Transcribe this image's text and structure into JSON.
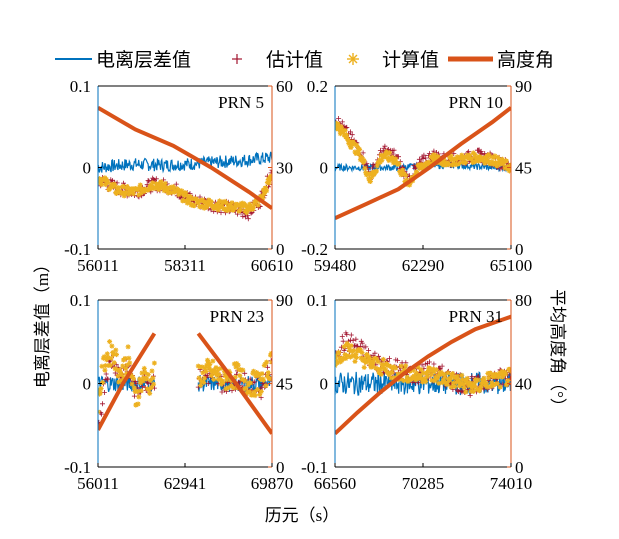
{
  "legend": {
    "position": "top",
    "items": [
      {
        "label": "电离层差值",
        "color": "#0072BD",
        "marker": "line"
      },
      {
        "label": "估计值",
        "color": "#A2142F",
        "marker": "plus"
      },
      {
        "label": "计算值",
        "color": "#EDB120",
        "marker": "star"
      },
      {
        "label": "高度角",
        "color": "#D95319",
        "marker": "thick-line"
      }
    ]
  },
  "left_ylabel": "电离层差值（m）",
  "right_ylabel": "平均高度角（°）",
  "xlabel": "历元（s）",
  "colors": {
    "diff": "#0072BD",
    "est": "#A2142F",
    "calc": "#EDB120",
    "elev": "#D95319",
    "right_axis": "#D95319",
    "left_axis": "#0072BD"
  },
  "chart_data": [
    {
      "type": "line",
      "title": "PRN 5",
      "x_ticks": [
        "56011",
        "58311",
        "60610"
      ],
      "xlim": [
        56011,
        60610
      ],
      "ylim": [
        -0.1,
        0.1
      ],
      "y_ticks": [
        "-0.1",
        "0",
        "0.1"
      ],
      "y2lim": [
        0,
        60
      ],
      "y2_ticks": [
        "0",
        "30",
        "60"
      ],
      "series": [
        {
          "name": "电离层差值",
          "x": [
            56011,
            56900,
            57800,
            58700,
            59600,
            60610
          ],
          "values": [
            0.0,
            0.004,
            0.003,
            0.005,
            0.008,
            0.012
          ],
          "noise": 0.008
        },
        {
          "name": "估计值",
          "x": [
            56011,
            56500,
            57000,
            57500,
            58000,
            58500,
            59000,
            59500,
            60000,
            60300,
            60610
          ],
          "values": [
            -0.015,
            -0.025,
            -0.03,
            -0.02,
            -0.025,
            -0.04,
            -0.045,
            -0.05,
            -0.055,
            -0.04,
            -0.005
          ],
          "noise": 0.008
        },
        {
          "name": "计算值",
          "x": [
            56011,
            56500,
            57000,
            57500,
            58000,
            58500,
            59000,
            59500,
            60000,
            60300,
            60610
          ],
          "values": [
            -0.012,
            -0.028,
            -0.03,
            -0.02,
            -0.028,
            -0.042,
            -0.045,
            -0.048,
            -0.05,
            -0.04,
            -0.01
          ],
          "noise": 0.006
        },
        {
          "name": "高度角",
          "x": [
            56011,
            57000,
            58000,
            59000,
            60000,
            60610
          ],
          "values": [
            52,
            44,
            38,
            30,
            21,
            15
          ]
        }
      ]
    },
    {
      "type": "line",
      "title": "PRN 10",
      "x_ticks": [
        "59480",
        "62290",
        "65100"
      ],
      "xlim": [
        59480,
        65100
      ],
      "ylim": [
        -0.2,
        0.2
      ],
      "y_ticks": [
        "-0.2",
        "0",
        "0.2"
      ],
      "y2lim": [
        0,
        90
      ],
      "y2_ticks": [
        "0",
        "45",
        "90"
      ],
      "series": [
        {
          "name": "电离层差值",
          "x": [
            59480,
            60500,
            61500,
            62500,
            63500,
            64500,
            65100
          ],
          "values": [
            0.0,
            0.0,
            0.0,
            0.005,
            0.005,
            0.0,
            0.0
          ],
          "noise": 0.008
        },
        {
          "name": "估计值",
          "x": [
            59480,
            59700,
            60000,
            60300,
            60600,
            61000,
            61400,
            61800,
            62200,
            62600,
            63000,
            63500,
            64000,
            64500,
            65100
          ],
          "values": [
            0.12,
            0.1,
            0.07,
            0.04,
            -0.02,
            0.04,
            0.03,
            -0.03,
            0.01,
            0.03,
            0.02,
            0.02,
            0.03,
            0.02,
            0.0
          ],
          "noise": 0.015
        },
        {
          "name": "计算值",
          "x": [
            59480,
            59700,
            60000,
            60300,
            60600,
            61000,
            61400,
            61800,
            62200,
            62600,
            63000,
            63500,
            64000,
            64500,
            65100
          ],
          "values": [
            0.11,
            0.09,
            0.06,
            0.03,
            -0.03,
            0.03,
            0.02,
            -0.04,
            0.0,
            0.02,
            0.015,
            0.02,
            0.025,
            0.02,
            0.0
          ],
          "noise": 0.012
        },
        {
          "name": "高度角",
          "x": [
            59480,
            60500,
            61500,
            62500,
            63500,
            64500,
            65100
          ],
          "values": [
            17,
            25,
            33,
            45,
            58,
            70,
            78
          ]
        }
      ]
    },
    {
      "type": "line",
      "title": "PRN 23",
      "x_ticks": [
        "56011",
        "62941",
        "69870"
      ],
      "xlim": [
        56011,
        69870
      ],
      "ylim": [
        -0.1,
        0.1
      ],
      "y_ticks": [
        "-0.1",
        "0",
        "0.1"
      ],
      "y2lim": [
        0,
        90
      ],
      "y2_ticks": [
        "0",
        "45",
        "90"
      ],
      "series": [
        {
          "name": "电离层差值",
          "segments": [
            {
              "x": [
                56011,
                57500,
                59000,
                60500
              ],
              "values": [
                0.0,
                0.0,
                0.0,
                0.0
              ]
            },
            {
              "x": [
                64000,
                66000,
                68000,
                69870
              ],
              "values": [
                0.0,
                0.0,
                0.0,
                0.0
              ]
            }
          ],
          "noise": 0.01
        },
        {
          "name": "估计值",
          "segments": [
            {
              "x": [
                56011,
                56600,
                57200,
                57800,
                58400,
                59000,
                59600,
                60200,
                60500
              ],
              "values": [
                -0.06,
                0.01,
                0.03,
                0.01,
                0.02,
                -0.01,
                0.005,
                0.0,
                0.005
              ]
            },
            {
              "x": [
                64000,
                65000,
                66000,
                67000,
                68000,
                69000,
                69870
              ],
              "values": [
                0.005,
                0.01,
                0.0,
                0.005,
                0.0,
                -0.005,
                0.02
              ]
            }
          ],
          "noise": 0.012
        },
        {
          "name": "计算值",
          "segments": [
            {
              "x": [
                56011,
                56600,
                57200,
                57800,
                58400,
                59000,
                59600,
                60200,
                60500
              ],
              "values": [
                -0.02,
                0.03,
                0.04,
                0.01,
                0.03,
                -0.02,
                0.01,
                0.0,
                0.01
              ]
            },
            {
              "x": [
                64000,
                65000,
                66000,
                67000,
                68000,
                69000,
                69870
              ],
              "values": [
                0.01,
                0.015,
                0.005,
                0.01,
                0.0,
                0.0,
                0.025
              ]
            }
          ],
          "noise": 0.015
        },
        {
          "name": "高度角",
          "segments": [
            {
              "x": [
                56011,
                58000,
                60500
              ],
              "values": [
                20,
                45,
                72
              ]
            },
            {
              "x": [
                64000,
                67000,
                69870
              ],
              "values": [
                72,
                45,
                18
              ]
            }
          ]
        }
      ]
    },
    {
      "type": "line",
      "title": "PRN 31",
      "x_ticks": [
        "66560",
        "70285",
        "74010"
      ],
      "xlim": [
        66560,
        74010
      ],
      "ylim": [
        -0.1,
        0.1
      ],
      "y_ticks": [
        "-0.1",
        "0",
        "0.1"
      ],
      "y2lim": [
        0,
        80
      ],
      "y2_ticks": [
        "0",
        "40",
        "80"
      ],
      "series": [
        {
          "name": "电离层差值",
          "x": [
            66560,
            67500,
            68500,
            69500,
            70500,
            71500,
            72500,
            73500,
            74010
          ],
          "values": [
            0.0,
            0.0,
            0.0,
            0.0,
            0.0,
            0.0,
            0.0,
            0.0,
            0.0
          ],
          "noise": 0.014
        },
        {
          "name": "估计值",
          "x": [
            66560,
            67000,
            67500,
            68000,
            68500,
            69000,
            69500,
            70000,
            70500,
            71000,
            71500,
            72000,
            72500,
            73000,
            73500,
            74010
          ],
          "values": [
            0.04,
            0.05,
            0.045,
            0.03,
            0.025,
            0.02,
            0.015,
            0.01,
            0.015,
            0.01,
            0.005,
            0.0,
            -0.005,
            0.005,
            0.005,
            0.01
          ],
          "noise": 0.012
        },
        {
          "name": "计算值",
          "x": [
            66560,
            67000,
            67500,
            68000,
            68500,
            69000,
            69500,
            70000,
            70500,
            71000,
            71500,
            72000,
            72500,
            73000,
            73500,
            74010
          ],
          "values": [
            0.03,
            0.04,
            0.035,
            0.025,
            0.02,
            0.015,
            0.012,
            0.01,
            0.012,
            0.008,
            0.004,
            0.0,
            -0.005,
            0.004,
            0.004,
            0.008
          ],
          "noise": 0.01
        },
        {
          "name": "高度角",
          "x": [
            66560,
            67500,
            68500,
            69500,
            70500,
            71500,
            72500,
            73500,
            74010
          ],
          "values": [
            16,
            26,
            36,
            45,
            53,
            60,
            66,
            70,
            72
          ]
        }
      ]
    }
  ]
}
